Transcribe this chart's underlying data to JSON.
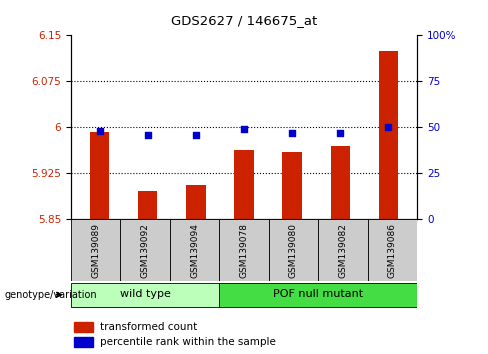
{
  "title": "GDS2627 / 146675_at",
  "categories": [
    "GSM139089",
    "GSM139092",
    "GSM139094",
    "GSM139078",
    "GSM139080",
    "GSM139082",
    "GSM139086"
  ],
  "bar_values": [
    5.993,
    5.897,
    5.907,
    5.963,
    5.96,
    5.97,
    6.125
  ],
  "percentile_values": [
    48,
    46,
    46,
    49,
    47,
    47,
    50
  ],
  "bar_base": 5.85,
  "ylim_left": [
    5.85,
    6.15
  ],
  "ylim_right": [
    0,
    100
  ],
  "yticks_left": [
    5.85,
    5.925,
    6.0,
    6.075,
    6.15
  ],
  "yticks_right": [
    0,
    25,
    50,
    75,
    100
  ],
  "ytick_labels_left": [
    "5.85",
    "5.925",
    "6",
    "6.075",
    "6.15"
  ],
  "ytick_labels_right": [
    "0",
    "25",
    "50",
    "75",
    "100%"
  ],
  "bar_color": "#cc2200",
  "dot_color": "#0000cc",
  "groups": [
    {
      "label": "wild type",
      "indices": [
        0,
        1,
        2
      ],
      "color": "#bbffbb"
    },
    {
      "label": "POF null mutant",
      "indices": [
        3,
        4,
        5,
        6
      ],
      "color": "#44dd44"
    }
  ],
  "group_header": "genotype/variation",
  "legend_bar_label": "transformed count",
  "legend_dot_label": "percentile rank within the sample",
  "bg_color": "#ffffff",
  "plot_bg_color": "#ffffff",
  "tick_label_color_left": "#cc2200",
  "tick_label_color_right": "#0000cc",
  "grid_color": "#000000",
  "sample_label_bg": "#cccccc",
  "bar_width": 0.4
}
